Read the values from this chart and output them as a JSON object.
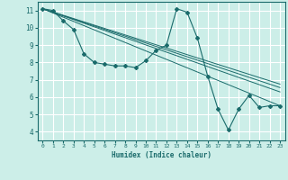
{
  "xlabel": "Humidex (Indice chaleur)",
  "ylabel": "",
  "bg_color": "#cceee8",
  "grid_color": "#ffffff",
  "line_color": "#1a6b6b",
  "xlim": [
    -0.5,
    23.5
  ],
  "ylim": [
    3.5,
    11.5
  ],
  "xticks": [
    0,
    1,
    2,
    3,
    4,
    5,
    6,
    7,
    8,
    9,
    10,
    11,
    12,
    13,
    14,
    15,
    16,
    17,
    18,
    19,
    20,
    21,
    22,
    23
  ],
  "yticks": [
    4,
    5,
    6,
    7,
    8,
    9,
    10,
    11
  ],
  "series1_x": [
    0,
    1,
    2,
    3,
    4,
    5,
    6,
    7,
    8,
    9,
    10,
    11,
    12,
    13,
    14,
    15,
    16,
    17,
    18,
    19,
    20,
    21,
    22,
    23
  ],
  "series1_y": [
    11.1,
    11.0,
    10.4,
    9.9,
    8.5,
    8.0,
    7.9,
    7.8,
    7.8,
    7.7,
    8.1,
    8.7,
    9.0,
    11.1,
    10.9,
    9.4,
    7.2,
    5.3,
    4.1,
    5.3,
    6.1,
    5.4,
    5.5,
    5.5
  ],
  "line1_x": [
    0,
    23
  ],
  "line1_y": [
    11.1,
    5.5
  ],
  "line2_x": [
    0,
    23
  ],
  "line2_y": [
    11.1,
    6.3
  ],
  "line3_x": [
    0,
    23
  ],
  "line3_y": [
    11.1,
    6.55
  ],
  "line4_x": [
    0,
    23
  ],
  "line4_y": [
    11.1,
    6.75
  ]
}
